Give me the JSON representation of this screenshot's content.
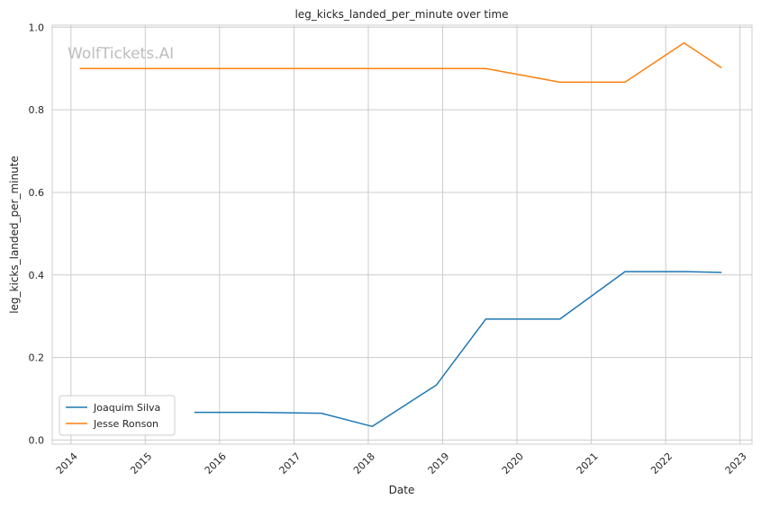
{
  "chart_data": {
    "type": "line",
    "title": "leg_kicks_landed_per_minute over time",
    "xlabel": "Date",
    "ylabel": "leg_kicks_landed_per_minute",
    "watermark": "WolfTickets.AI",
    "xlim": [
      "2013-10-01",
      "2023-03-01"
    ],
    "ylim": [
      -0.01,
      1.005
    ],
    "xticks": [
      "2014",
      "2015",
      "2016",
      "2017",
      "2018",
      "2019",
      "2020",
      "2021",
      "2022",
      "2023"
    ],
    "yticks": [
      "0.0",
      "0.2",
      "0.4",
      "0.6",
      "0.8",
      "1.0"
    ],
    "grid": true,
    "legend_position": "lower-left",
    "series": [
      {
        "name": "Joaquim Silva",
        "color": "#1f77b4",
        "points": [
          {
            "x": "2015-09-01",
            "y": 0.067
          },
          {
            "x": "2016-07-01",
            "y": 0.067
          },
          {
            "x": "2017-05-15",
            "y": 0.065
          },
          {
            "x": "2018-01-20",
            "y": 0.033
          },
          {
            "x": "2018-12-01",
            "y": 0.133
          },
          {
            "x": "2019-08-01",
            "y": 0.293
          },
          {
            "x": "2020-07-30",
            "y": 0.293
          },
          {
            "x": "2021-06-15",
            "y": 0.408
          },
          {
            "x": "2022-04-01",
            "y": 0.408
          },
          {
            "x": "2022-10-01",
            "y": 0.406
          }
        ]
      },
      {
        "name": "Jesse Ronson",
        "color": "#ff7f0e",
        "points": [
          {
            "x": "2014-02-15",
            "y": 0.9
          },
          {
            "x": "2019-08-01",
            "y": 0.9
          },
          {
            "x": "2020-07-30",
            "y": 0.867
          },
          {
            "x": "2021-06-15",
            "y": 0.867
          },
          {
            "x": "2022-04-01",
            "y": 0.962
          },
          {
            "x": "2022-10-01",
            "y": 0.902
          }
        ]
      }
    ]
  }
}
